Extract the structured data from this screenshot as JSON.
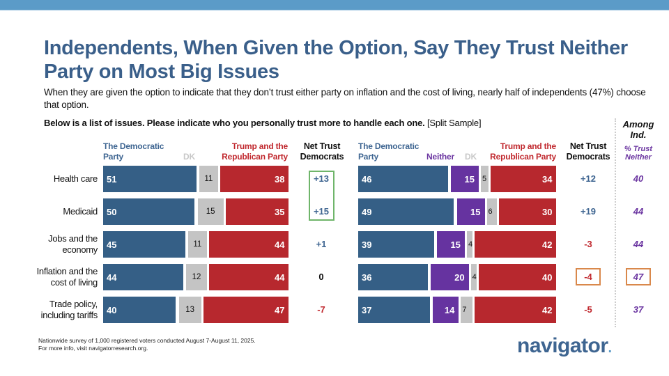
{
  "slide": {
    "title": "Independents, When Given the Option, Say They Trust Neither Party on Most Big Issues",
    "subtitle": "When they are given the option to indicate that they don’t trust either party on inflation and the cost of living, nearly half of independents (47%) choose that option.",
    "question_bold": "Below is a list of issues. Please indicate who you personally trust more to handle each one.",
    "question_note": " [Split Sample]",
    "footnote_line1": "Nationwide survey of 1,000 registered voters conducted August 7-August 11, 2025.",
    "footnote_line2": "For more info, visit navigatorresearch.org.",
    "logo_text": "navigator",
    "logo_dot": "."
  },
  "colors": {
    "democratic": "#355f86",
    "republican": "#b7282e",
    "dk": "#c4c4c4",
    "neither": "#6633a0",
    "title": "#3a5f8a",
    "highlight_green": "#6fb56a",
    "highlight_orange": "#d9884b"
  },
  "chart_data": [
    {
      "type": "bar",
      "stacked": true,
      "orientation": "horizontal",
      "title": "Split Sample A (without Neither option)",
      "categories": [
        "Health care",
        "Medicaid",
        "Jobs and the economy",
        "Inflation and the cost of living",
        "Trade policy, including tariffs"
      ],
      "category_lines": [
        [
          "Health care"
        ],
        [
          "Medicaid"
        ],
        [
          "Jobs and the",
          "economy"
        ],
        [
          "Inflation and the",
          "cost of living"
        ],
        [
          "Trade policy,",
          "including tariffs"
        ]
      ],
      "legend": {
        "democratic": "The Democratic Party",
        "dk": "DK",
        "republican": "Trump and the Republican Party"
      },
      "header_lines": {
        "democratic": [
          "The Democratic",
          "Party"
        ],
        "dk": [
          "DK"
        ],
        "republican": [
          "Trump and the",
          "Republican Party"
        ],
        "net": [
          "Net Trust",
          "Democrats"
        ]
      },
      "series": [
        {
          "name": "The Democratic Party",
          "values": [
            51,
            50,
            45,
            44,
            40
          ]
        },
        {
          "name": "DK",
          "values": [
            11,
            15,
            11,
            12,
            13
          ]
        },
        {
          "name": "Trump and the Republican Party",
          "values": [
            38,
            35,
            44,
            44,
            47
          ]
        }
      ],
      "net_trust_democrats": [
        "+13",
        "+15",
        "+1",
        "0",
        "-7"
      ],
      "highlighted_net_rows": [
        0,
        1
      ],
      "xlim": [
        0,
        100
      ]
    },
    {
      "type": "bar",
      "stacked": true,
      "orientation": "horizontal",
      "title": "Split Sample B (with Neither option)",
      "categories": [
        "Health care",
        "Medicaid",
        "Jobs and the economy",
        "Inflation and the cost of living",
        "Trade policy, including tariffs"
      ],
      "legend": {
        "democratic": "The Democratic Party",
        "neither": "Neither",
        "dk": "DK",
        "republican": "Trump and the Republican Party"
      },
      "header_lines": {
        "democratic": [
          "The Democratic",
          "Party"
        ],
        "neither": [
          "Neither"
        ],
        "dk": [
          "DK"
        ],
        "republican": [
          "Trump and the",
          "Republican Party"
        ],
        "net": [
          "Net Trust",
          "Democrats"
        ]
      },
      "series": [
        {
          "name": "The Democratic Party",
          "values": [
            46,
            49,
            39,
            36,
            37
          ]
        },
        {
          "name": "Neither",
          "values": [
            15,
            15,
            15,
            20,
            14
          ]
        },
        {
          "name": "DK",
          "values": [
            5,
            6,
            4,
            4,
            7
          ]
        },
        {
          "name": "Trump and the Republican Party",
          "values": [
            34,
            30,
            42,
            40,
            42
          ]
        }
      ],
      "net_trust_democrats": [
        "+12",
        "+19",
        "-3",
        "-4",
        "-5"
      ],
      "highlighted_net_rows": [
        3
      ],
      "xlim": [
        0,
        100
      ]
    },
    {
      "type": "table",
      "title_lines": [
        "Among",
        "Ind."
      ],
      "subtitle_lines": [
        "% Trust",
        "Neither"
      ],
      "categories": [
        "Health care",
        "Medicaid",
        "Jobs and the economy",
        "Inflation and the cost of living",
        "Trade policy, including tariffs"
      ],
      "values": [
        40,
        44,
        44,
        47,
        37
      ],
      "highlighted_rows": [
        3
      ]
    }
  ]
}
